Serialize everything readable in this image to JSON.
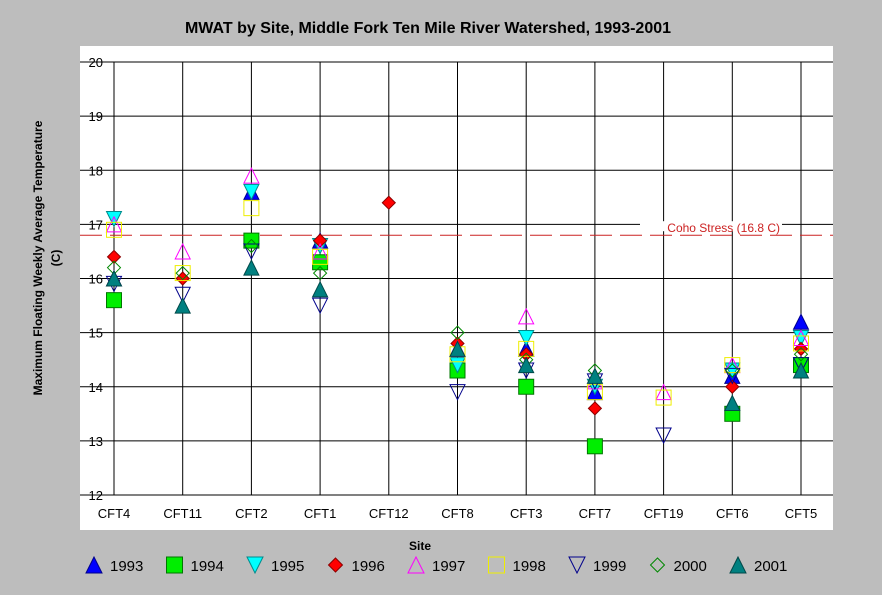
{
  "chart_data": {
    "type": "scatter",
    "title": "MWAT by Site, Middle Fork Ten Mile River Watershed, 1993-2001",
    "xlabel": "Site",
    "ylabel_line1": "Maximum Floating Weekly Average Temperature",
    "ylabel_line2": "(C)",
    "ylim": [
      12,
      20
    ],
    "yticks": [
      12,
      13,
      14,
      15,
      16,
      17,
      18,
      19,
      20
    ],
    "grid": true,
    "legend_position": "bottom",
    "categories": [
      "CFT4",
      "CFT11",
      "CFT2",
      "CFT1",
      "CFT12",
      "CFT8",
      "CFT3",
      "CFT7",
      "CFT19",
      "CFT6",
      "CFT5"
    ],
    "reference_line": {
      "label": "Coho Stress (16.8 C)",
      "value": 16.8,
      "color": "#cc2222"
    },
    "series": [
      {
        "name": "1993",
        "marker": "triangle-up",
        "fill": "#0000ff",
        "stroke": "#00008b",
        "hollow": false,
        "values": [
          16.0,
          null,
          17.6,
          16.7,
          null,
          14.7,
          14.7,
          13.9,
          null,
          14.2,
          15.2
        ]
      },
      {
        "name": "1994",
        "marker": "square",
        "fill": "#00ee00",
        "stroke": "#007700",
        "hollow": false,
        "values": [
          15.6,
          null,
          16.7,
          16.3,
          null,
          14.3,
          14.0,
          12.9,
          null,
          13.5,
          14.4
        ]
      },
      {
        "name": "1995",
        "marker": "triangle-down",
        "fill": "#00ffff",
        "stroke": "#008b8b",
        "hollow": false,
        "values": [
          17.1,
          null,
          17.6,
          16.6,
          null,
          14.4,
          14.9,
          14.0,
          null,
          14.3,
          14.9
        ]
      },
      {
        "name": "1996",
        "marker": "diamond",
        "fill": "#ff0000",
        "stroke": "#8b0000",
        "hollow": false,
        "values": [
          16.4,
          16.0,
          null,
          16.7,
          17.4,
          14.8,
          14.6,
          13.6,
          null,
          14.0,
          14.7
        ]
      },
      {
        "name": "1997",
        "marker": "triangle-up",
        "fill": "none",
        "stroke": "#ff00ff",
        "hollow": true,
        "values": [
          17.0,
          16.5,
          17.9,
          16.5,
          null,
          14.7,
          15.3,
          14.1,
          13.9,
          14.4,
          14.9
        ]
      },
      {
        "name": "1998",
        "marker": "square",
        "fill": "none",
        "stroke": "#eeee00",
        "hollow": true,
        "values": [
          16.9,
          16.1,
          17.3,
          16.4,
          null,
          14.6,
          14.7,
          13.9,
          13.8,
          14.4,
          14.8
        ]
      },
      {
        "name": "1999",
        "marker": "triangle-down",
        "fill": "none",
        "stroke": "#00008b",
        "hollow": true,
        "values": [
          15.9,
          15.7,
          16.5,
          15.5,
          null,
          13.9,
          14.3,
          14.1,
          13.1,
          14.2,
          14.4
        ]
      },
      {
        "name": "2000",
        "marker": "diamond",
        "fill": "none",
        "stroke": "#008800",
        "hollow": true,
        "values": [
          16.2,
          16.1,
          16.6,
          16.1,
          null,
          15.0,
          14.5,
          14.3,
          null,
          14.3,
          14.6
        ]
      },
      {
        "name": "2001",
        "marker": "triangle-up",
        "fill": "#008080",
        "stroke": "#004848",
        "hollow": false,
        "values": [
          16.0,
          15.5,
          16.2,
          15.8,
          null,
          14.7,
          14.4,
          14.2,
          null,
          13.7,
          14.3
        ]
      }
    ]
  }
}
